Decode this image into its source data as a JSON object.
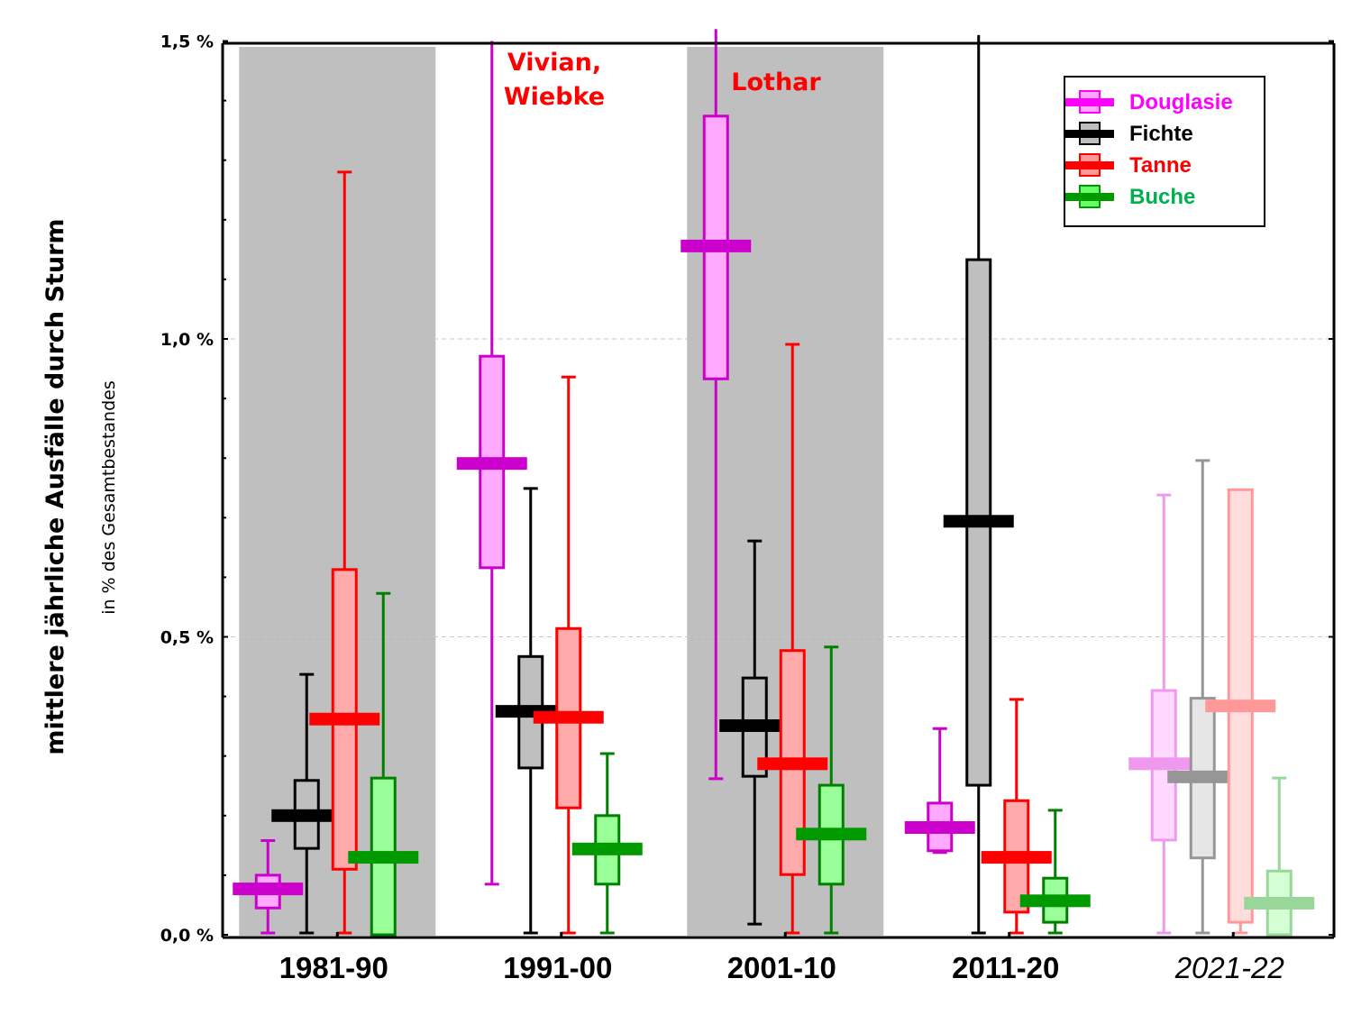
{
  "chart_data": {
    "type": "boxplot",
    "title": "",
    "ylabel": "mittlere jährliche Ausfälle durch Sturm",
    "ylabel_sub": "in % des Gesamtbestandes",
    "xlabel": "",
    "ylim": [
      0,
      1.5
    ],
    "yticks": [
      {
        "value": 0.0,
        "label": "0,0 %"
      },
      {
        "value": 0.5,
        "label": "0,5 %"
      },
      {
        "value": 1.0,
        "label": "1,0 %"
      },
      {
        "value": 1.5,
        "label": "1,5 %"
      }
    ],
    "minor_tick_step": 0.1,
    "grid": "dashed horizontal at 0.5 and 1.0",
    "categories": [
      "1981-90",
      "1991-00",
      "2001-10",
      "2011-20",
      "2021-22"
    ],
    "category_italic": [
      false,
      false,
      false,
      false,
      true
    ],
    "shaded_categories": [
      "1981-90",
      "2001-10"
    ],
    "annotations": [
      {
        "category": "1991-00",
        "lines": [
          "Vivian,",
          "Wiebke"
        ]
      },
      {
        "category": "2001-10",
        "lines": [
          "Lothar"
        ]
      }
    ],
    "legend": {
      "position": "top-right",
      "entries": [
        {
          "name": "Douglasie",
          "text_color": "#ff00ff"
        },
        {
          "name": "Fichte",
          "text_color": "#000000"
        },
        {
          "name": "Tanne",
          "text_color": "#ff0000"
        },
        {
          "name": "Buche",
          "text_color": "#00b050"
        }
      ]
    },
    "series": [
      {
        "name": "Douglasie",
        "colors": {
          "line": "#cc00cc",
          "fill": "#ffaaff",
          "median": "#cc00cc",
          "faded_line": "#ee99ee",
          "faded_fill": "#ffd9ff",
          "faded_median": "#ee99ee",
          "legend_line": "#ff00ff",
          "legend_fill": "#ffaaff"
        },
        "values": [
          {
            "whisker_low": 0.003,
            "q1": 0.045,
            "median": 0.077,
            "q3": 0.1,
            "whisker_high": 0.158
          },
          {
            "whisker_low": 0.085,
            "q1": 0.616,
            "median": 0.791,
            "q3": 0.971,
            "whisker_high": 1.5
          },
          {
            "whisker_low": 0.262,
            "q1": 0.933,
            "median": 1.156,
            "q3": 1.374,
            "whisker_high": 1.52
          },
          {
            "whisker_low": 0.138,
            "q1": 0.141,
            "median": 0.18,
            "q3": 0.221,
            "whisker_high": 0.346
          },
          {
            "whisker_low": 0.003,
            "q1": 0.159,
            "median": 0.287,
            "q3": 0.41,
            "whisker_high": 0.738
          }
        ]
      },
      {
        "name": "Fichte",
        "colors": {
          "line": "#000000",
          "fill": "#bfbfbf",
          "median": "#000000",
          "faded_line": "#969696",
          "faded_fill": "#e6e6e6",
          "faded_median": "#969696",
          "legend_line": "#000000",
          "legend_fill": "#bfbfbf"
        },
        "values": [
          {
            "whisker_low": 0.003,
            "q1": 0.145,
            "median": 0.2,
            "q3": 0.259,
            "whisker_high": 0.437
          },
          {
            "whisker_low": 0.003,
            "q1": 0.28,
            "median": 0.375,
            "q3": 0.467,
            "whisker_high": 0.749
          },
          {
            "whisker_low": 0.018,
            "q1": 0.266,
            "median": 0.351,
            "q3": 0.431,
            "whisker_high": 0.661
          },
          {
            "whisker_low": 0.003,
            "q1": 0.251,
            "median": 0.694,
            "q3": 1.133,
            "whisker_high": 1.51
          },
          {
            "whisker_low": 0.003,
            "q1": 0.129,
            "median": 0.265,
            "q3": 0.397,
            "whisker_high": 0.796
          }
        ]
      },
      {
        "name": "Tanne",
        "colors": {
          "line": "#ff0000",
          "fill": "#ffaaaa",
          "median": "#ff0000",
          "faded_line": "#ff9999",
          "faded_fill": "#ffdddd",
          "faded_median": "#ff9999",
          "legend_line": "#ff0000",
          "legend_fill": "#ff9999"
        },
        "values": [
          {
            "whisker_low": 0.003,
            "q1": 0.11,
            "median": 0.362,
            "q3": 0.613,
            "whisker_high": 1.28
          },
          {
            "whisker_low": 0.003,
            "q1": 0.213,
            "median": 0.365,
            "q3": 0.514,
            "whisker_high": 0.936
          },
          {
            "whisker_low": 0.003,
            "q1": 0.101,
            "median": 0.287,
            "q3": 0.477,
            "whisker_high": 0.991
          },
          {
            "whisker_low": 0.003,
            "q1": 0.038,
            "median": 0.13,
            "q3": 0.225,
            "whisker_high": 0.395
          },
          {
            "whisker_low": 0.003,
            "q1": 0.021,
            "median": 0.384,
            "q3": 0.747,
            "whisker_high": 0.747
          }
        ]
      },
      {
        "name": "Buche",
        "colors": {
          "line": "#008000",
          "fill": "#99ff99",
          "median": "#009900",
          "faded_line": "#99d699",
          "faded_fill": "#d5ffd5",
          "faded_median": "#99d699",
          "legend_line": "#009900",
          "legend_fill": "#66ff66"
        },
        "values": [
          {
            "whisker_low": 0.0,
            "q1": 0.0,
            "median": 0.13,
            "q3": 0.263,
            "whisker_high": 0.573
          },
          {
            "whisker_low": 0.003,
            "q1": 0.085,
            "median": 0.144,
            "q3": 0.2,
            "whisker_high": 0.304
          },
          {
            "whisker_low": 0.003,
            "q1": 0.085,
            "median": 0.169,
            "q3": 0.251,
            "whisker_high": 0.483
          },
          {
            "whisker_low": 0.003,
            "q1": 0.021,
            "median": 0.057,
            "q3": 0.095,
            "whisker_high": 0.209
          },
          {
            "whisker_low": 0.0,
            "q1": 0.0,
            "median": 0.053,
            "q3": 0.107,
            "whisker_high": 0.263
          }
        ]
      }
    ]
  }
}
